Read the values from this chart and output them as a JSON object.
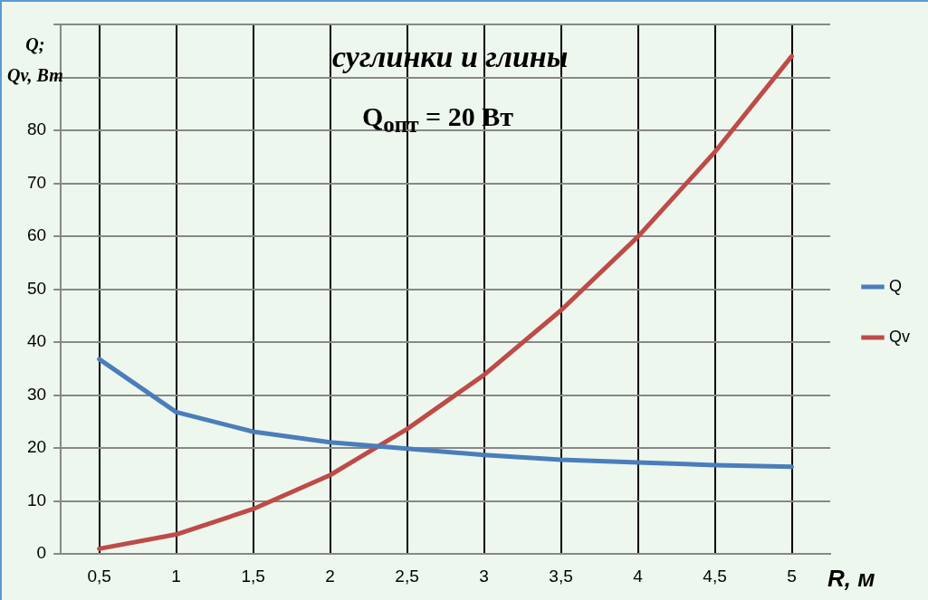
{
  "chart_data": {
    "type": "line",
    "title": "суглинки и глины",
    "xlabel": "R, м",
    "ylabel": "Q;\nQv, Вт",
    "annotations": [
      "Q$_{опт}$ = 20 Вт"
    ],
    "categories": [
      "0,5",
      "1",
      "1,5",
      "2",
      "2,5",
      "3",
      "3,5",
      "4",
      "4,5",
      "5"
    ],
    "series": [
      {
        "name": "Q",
        "color": "#4a7ebb",
        "values": [
          36.8,
          26.8,
          23.1,
          21.1,
          19.9,
          18.7,
          17.8,
          17.3,
          16.8,
          16.5
        ]
      },
      {
        "name": "Qv",
        "color": "#be4b48",
        "values": [
          1.0,
          3.7,
          8.5,
          14.9,
          23.6,
          33.8,
          46,
          59.9,
          75.9,
          94
        ]
      }
    ],
    "ylim": [
      0,
      100
    ],
    "yticks": [
      0,
      10,
      20,
      30,
      40,
      50,
      60,
      70,
      80,
      {
        "value": 90,
        "label": null
      },
      {
        "value": 100,
        "label": null
      }
    ],
    "grid": true,
    "legend": "right",
    "marker": "none",
    "line_style": "solid"
  }
}
